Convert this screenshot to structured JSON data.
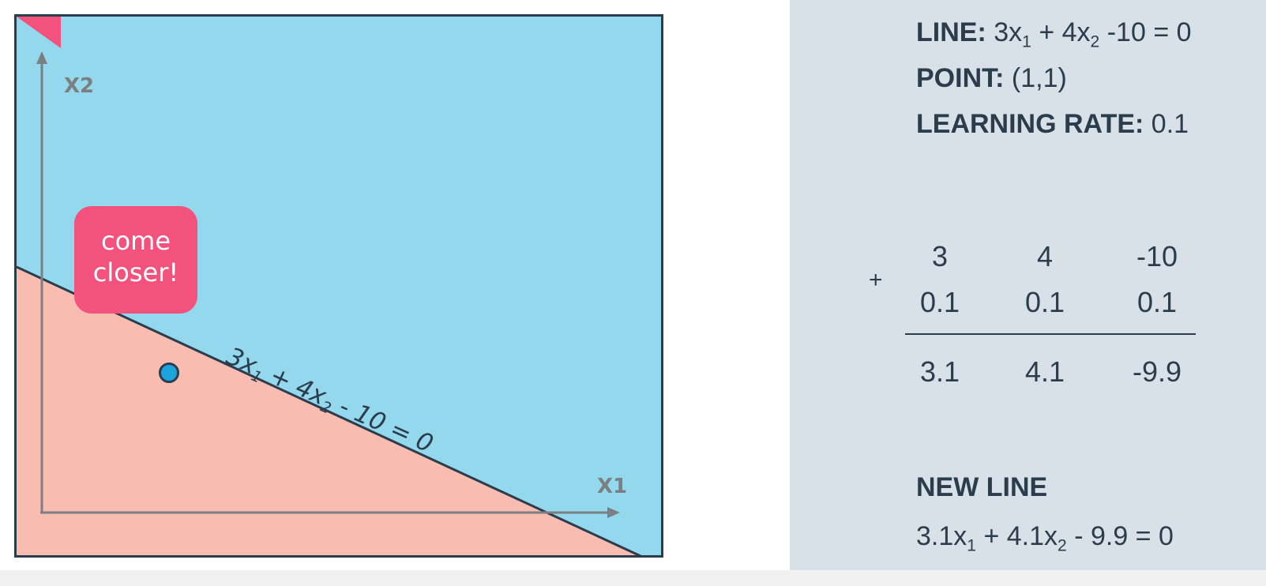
{
  "diagram": {
    "axis_x_label": "X1",
    "axis_y_label": "X2",
    "bubble_line1": "come",
    "bubble_line2": "closer!",
    "line_eq": {
      "a": "3x",
      "a_sub": "1",
      "b": " + 4x",
      "b_sub": "2",
      "c": " - 10 = 0"
    },
    "colors": {
      "positive_region": "#93d8ed",
      "negative_region": "#f9bcb0",
      "line": "#2b3c4c",
      "point": "#1aa6dc",
      "bubble": "#f2527c",
      "axis": "#7b7f82"
    }
  },
  "panel": {
    "line_label": "LINE:",
    "line_a": " 3x",
    "line_a_sub": "1",
    "line_b": " + 4x",
    "line_b_sub": "2",
    "line_c": " -10 = 0",
    "point_label": "POINT:",
    "point_value": " (1,1)",
    "lr_label": "LEARNING RATE:",
    "lr_value": " 0.1",
    "plus": "+",
    "row1": [
      "3",
      "4",
      "-10"
    ],
    "row2": [
      "0.1",
      "0.1",
      "0.1"
    ],
    "row3": [
      "3.1",
      "4.1",
      "-9.9"
    ],
    "new_line_title": "NEW LINE",
    "new_a": "3.1x",
    "new_a_sub": "1",
    "new_b": " + 4.1x",
    "new_b_sub": "2",
    "new_c": " - 9.9 = 0"
  }
}
